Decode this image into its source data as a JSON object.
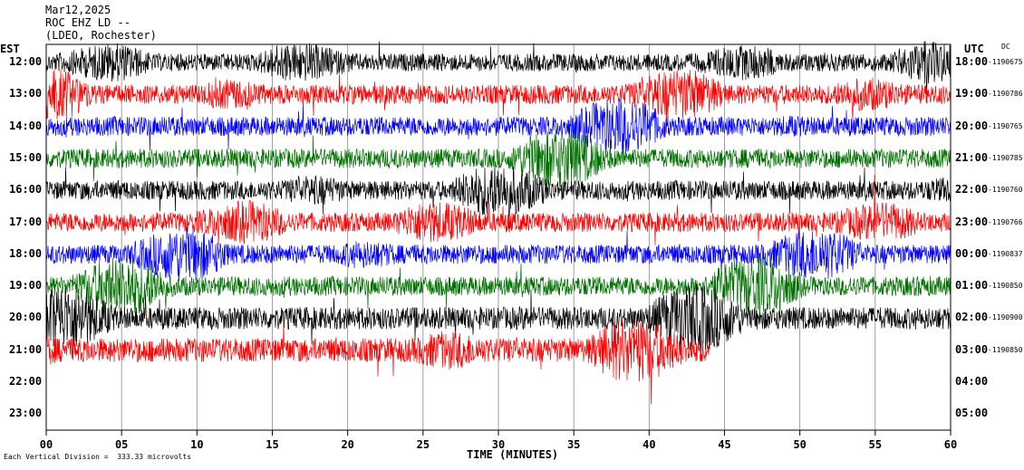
{
  "header": {
    "date": "Mar12,2025",
    "station": "ROC EHZ LD --",
    "network": "(LDEO, Rochester)"
  },
  "chart_data": {
    "type": "line",
    "description_free": true,
    "left_timezone": "EST",
    "right_timezone": "UTC",
    "dc_label": "DC",
    "xlabel": "TIME (MINUTES)",
    "xlim": [
      0,
      60
    ],
    "x_ticks": [
      "00",
      "05",
      "10",
      "15",
      "20",
      "25",
      "30",
      "35",
      "40",
      "45",
      "50",
      "55",
      "60"
    ],
    "footer": "Each Vertical Division =  333.33 microvolts",
    "colors": [
      "#000000",
      "#ff0000",
      "#0000ff",
      "#007000"
    ],
    "rows": [
      {
        "est": "12:00",
        "utc": "18:00",
        "dc": "-1190675",
        "color": "#000000",
        "amp": 0.55,
        "end_minute": 60
      },
      {
        "est": "13:00",
        "utc": "19:00",
        "dc": "-1190786",
        "color": "#ff0000",
        "amp": 0.6,
        "end_minute": 60
      },
      {
        "est": "14:00",
        "utc": "20:00",
        "dc": "-1190765",
        "color": "#0000ff",
        "amp": 0.6,
        "end_minute": 60
      },
      {
        "est": "15:00",
        "utc": "21:00",
        "dc": "-1190785",
        "color": "#007000",
        "amp": 0.6,
        "end_minute": 60
      },
      {
        "est": "16:00",
        "utc": "22:00",
        "dc": "-1190760",
        "color": "#000000",
        "amp": 0.6,
        "end_minute": 60
      },
      {
        "est": "17:00",
        "utc": "23:00",
        "dc": "-1190766",
        "color": "#ff0000",
        "amp": 0.6,
        "end_minute": 60
      },
      {
        "est": "18:00",
        "utc": "00:00",
        "dc": "-1190837",
        "color": "#0000ff",
        "amp": 0.6,
        "end_minute": 60
      },
      {
        "est": "19:00",
        "utc": "01:00",
        "dc": "-1190850",
        "color": "#007000",
        "amp": 0.6,
        "end_minute": 60
      },
      {
        "est": "20:00",
        "utc": "02:00",
        "dc": "-1190900",
        "color": "#000000",
        "amp": 0.7,
        "end_minute": 60
      },
      {
        "est": "21:00",
        "utc": "03:00",
        "dc": "-1190850",
        "color": "#ff0000",
        "amp": 0.75,
        "end_minute": 44
      },
      {
        "est": "22:00",
        "utc": "04:00",
        "dc": "",
        "color": "#000000",
        "amp": 0,
        "end_minute": 0
      },
      {
        "est": "23:00",
        "utc": "05:00",
        "dc": "",
        "color": "#000000",
        "amp": 0,
        "end_minute": 0
      }
    ]
  }
}
